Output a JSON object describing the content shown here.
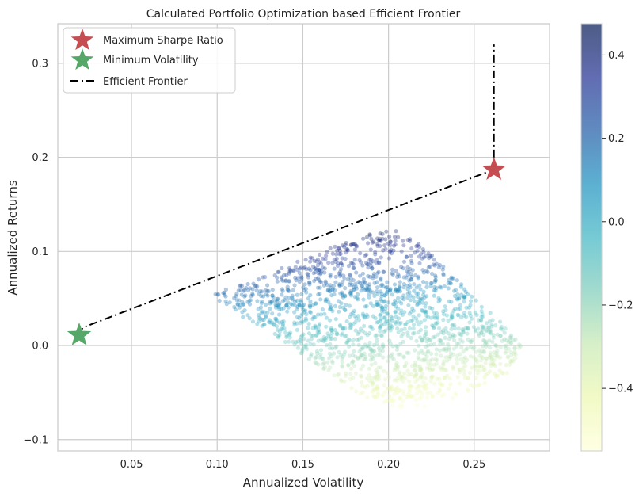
{
  "chart_data": {
    "type": "scatter",
    "title": "Calculated Portfolio Optimization based Efficient Frontier",
    "xlabel": "Annualized Volatility",
    "ylabel": "Annualized Returns",
    "xlim": [
      0.007,
      0.294
    ],
    "ylim": [
      -0.112,
      0.342
    ],
    "x_ticks": [
      {
        "value": 0.05,
        "label": "0.05"
      },
      {
        "value": 0.1,
        "label": "0.10"
      },
      {
        "value": 0.15,
        "label": "0.15"
      },
      {
        "value": 0.2,
        "label": "0.20"
      },
      {
        "value": 0.25,
        "label": "0.25"
      }
    ],
    "y_ticks": [
      {
        "value": -0.1,
        "label": "−0.1"
      },
      {
        "value": 0.0,
        "label": "0.0"
      },
      {
        "value": 0.1,
        "label": "0.1"
      },
      {
        "value": 0.2,
        "label": "0.2"
      },
      {
        "value": 0.3,
        "label": "0.3"
      }
    ],
    "grid": true,
    "legend_position": "top-left",
    "legend": [
      {
        "label": "Maximum Sharpe Ratio",
        "marker": "star",
        "color": "#c44e52"
      },
      {
        "label": "Minimum Volatility",
        "marker": "star",
        "color": "#55a868"
      },
      {
        "label": "Efficient Frontier",
        "marker": "dash-dot-line",
        "color": "#000000"
      }
    ],
    "colorbar": {
      "colormap": "YlGnBu",
      "range": [
        -0.55,
        0.475
      ],
      "ticks": [
        {
          "value": -0.4,
          "label": "−0.4"
        },
        {
          "value": -0.2,
          "label": "−0.2"
        },
        {
          "value": 0.0,
          "label": "0.0"
        },
        {
          "value": 0.2,
          "label": "0.2"
        },
        {
          "value": 0.4,
          "label": "0.4"
        }
      ]
    },
    "series": [
      {
        "name": "Maximum Sharpe Ratio",
        "kind": "star-marker",
        "color": "#c44e52",
        "points": [
          {
            "x": 0.2615,
            "y": 0.187
          }
        ]
      },
      {
        "name": "Minimum Volatility",
        "kind": "star-marker",
        "color": "#55a868",
        "points": [
          {
            "x": 0.0195,
            "y": 0.011
          }
        ]
      },
      {
        "name": "Efficient Frontier",
        "kind": "line",
        "style": "dash-dot",
        "color": "#000000",
        "points": [
          {
            "x": 0.0195,
            "y": 0.011
          },
          {
            "x": 0.0215,
            "y": 0.019
          },
          {
            "x": 0.26,
            "y": 0.186
          },
          {
            "x": 0.2615,
            "y": 0.196
          },
          {
            "x": 0.2615,
            "y": 0.32
          }
        ]
      },
      {
        "kind": "scatter-cloud",
        "marker_alpha": 0.35,
        "color_value": "sharpe ratio",
        "envelope": [
          {
            "x": 0.097,
            "y": 0.055
          },
          {
            "x": 0.12,
            "y": 0.068
          },
          {
            "x": 0.16,
            "y": 0.101
          },
          {
            "x": 0.19,
            "y": 0.119
          },
          {
            "x": 0.205,
            "y": 0.124
          },
          {
            "x": 0.218,
            "y": 0.111
          },
          {
            "x": 0.24,
            "y": 0.07
          },
          {
            "x": 0.26,
            "y": 0.035
          },
          {
            "x": 0.278,
            "y": 0.002
          },
          {
            "x": 0.27,
            "y": -0.03
          },
          {
            "x": 0.24,
            "y": -0.055
          },
          {
            "x": 0.215,
            "y": -0.068
          },
          {
            "x": 0.19,
            "y": -0.06
          },
          {
            "x": 0.15,
            "y": -0.01
          },
          {
            "x": 0.13,
            "y": 0.015
          },
          {
            "x": 0.105,
            "y": 0.04
          }
        ]
      }
    ]
  }
}
